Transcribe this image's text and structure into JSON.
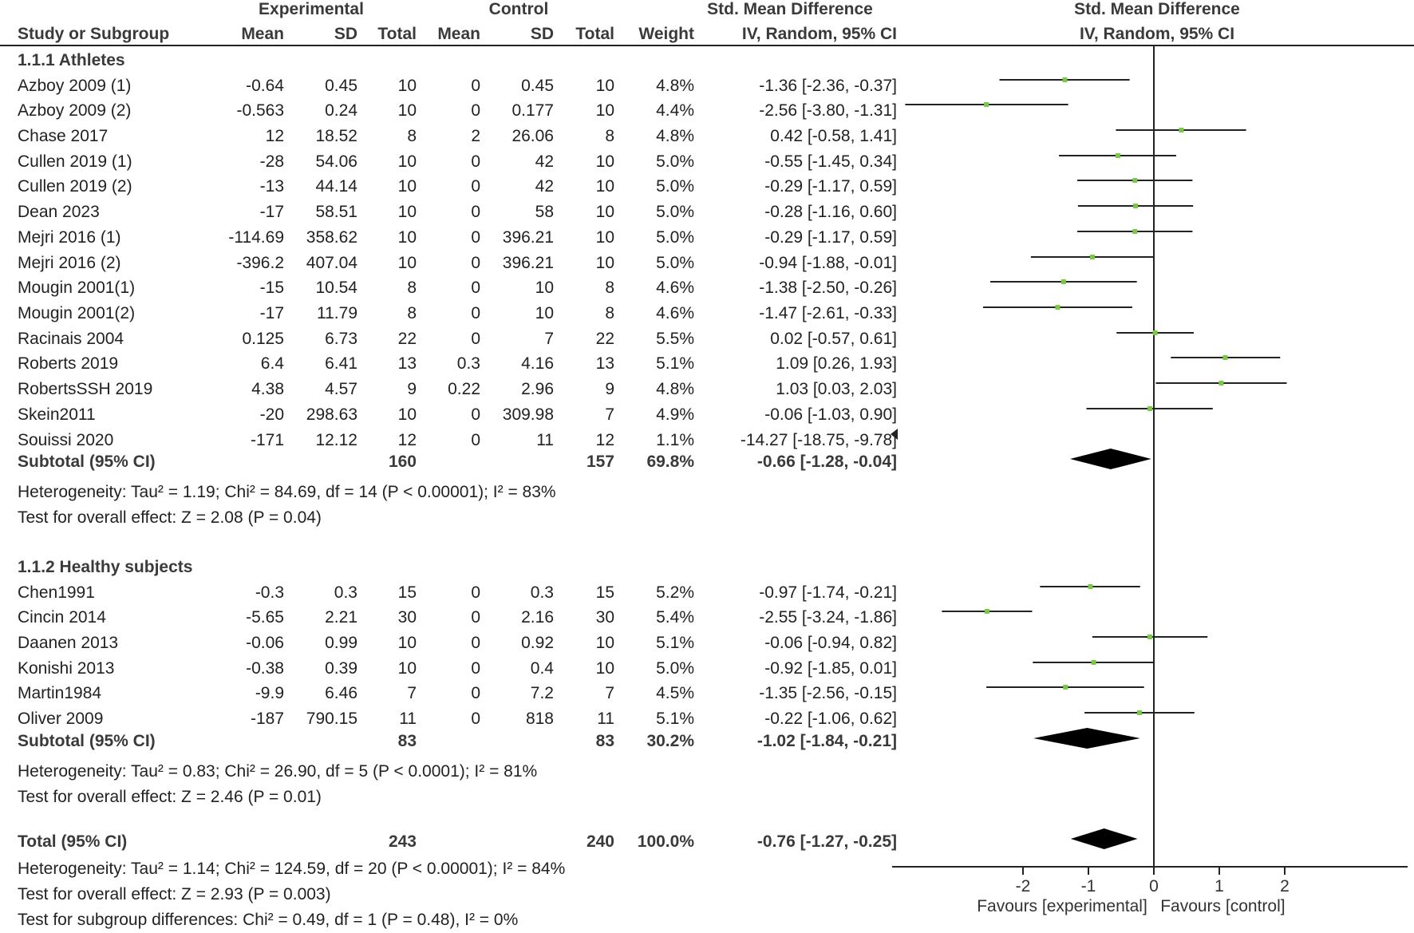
{
  "chart_data": {
    "type": "forest",
    "headers": {
      "experimental": "Experimental",
      "control": "Control",
      "smd": "Std. Mean Difference",
      "smd_plot": "Std. Mean Difference",
      "study": "Study or Subgroup",
      "mean_e": "Mean",
      "sd_e": "SD",
      "total_e": "Total",
      "mean_c": "Mean",
      "sd_c": "SD",
      "total_c": "Total",
      "weight": "Weight",
      "method": "IV, Random, 95% CI",
      "method_plot": "IV, Random, 95% CI"
    },
    "groups": [
      {
        "title": "1.1.1 Athletes",
        "studies": [
          {
            "name": "Azboy 2009 (1)",
            "mean_e": "-0.64",
            "sd_e": "0.45",
            "n_e": "10",
            "mean_c": "0",
            "sd_c": "0.45",
            "n_c": "10",
            "weight": "4.8%",
            "ci_text": "-1.36 [-2.36, -0.37]",
            "est": -1.36,
            "lo": -2.36,
            "hi": -0.37
          },
          {
            "name": "Azboy 2009 (2)",
            "mean_e": "-0.563",
            "sd_e": "0.24",
            "n_e": "10",
            "mean_c": "0",
            "sd_c": "0.177",
            "n_c": "10",
            "weight": "4.4%",
            "ci_text": "-2.56 [-3.80, -1.31]",
            "est": -2.56,
            "lo": -3.8,
            "hi": -1.31
          },
          {
            "name": "Chase 2017",
            "mean_e": "12",
            "sd_e": "18.52",
            "n_e": "8",
            "mean_c": "2",
            "sd_c": "26.06",
            "n_c": "8",
            "weight": "4.8%",
            "ci_text": "0.42 [-0.58, 1.41]",
            "est": 0.42,
            "lo": -0.58,
            "hi": 1.41
          },
          {
            "name": "Cullen 2019 (1)",
            "mean_e": "-28",
            "sd_e": "54.06",
            "n_e": "10",
            "mean_c": "0",
            "sd_c": "42",
            "n_c": "10",
            "weight": "5.0%",
            "ci_text": "-0.55 [-1.45, 0.34]",
            "est": -0.55,
            "lo": -1.45,
            "hi": 0.34
          },
          {
            "name": "Cullen 2019 (2)",
            "mean_e": "-13",
            "sd_e": "44.14",
            "n_e": "10",
            "mean_c": "0",
            "sd_c": "42",
            "n_c": "10",
            "weight": "5.0%",
            "ci_text": "-0.29 [-1.17, 0.59]",
            "est": -0.29,
            "lo": -1.17,
            "hi": 0.59
          },
          {
            "name": "Dean 2023",
            "mean_e": "-17",
            "sd_e": "58.51",
            "n_e": "10",
            "mean_c": "0",
            "sd_c": "58",
            "n_c": "10",
            "weight": "5.0%",
            "ci_text": "-0.28 [-1.16, 0.60]",
            "est": -0.28,
            "lo": -1.16,
            "hi": 0.6
          },
          {
            "name": "Mejri 2016 (1)",
            "mean_e": "-114.69",
            "sd_e": "358.62",
            "n_e": "10",
            "mean_c": "0",
            "sd_c": "396.21",
            "n_c": "10",
            "weight": "5.0%",
            "ci_text": "-0.29 [-1.17, 0.59]",
            "est": -0.29,
            "lo": -1.17,
            "hi": 0.59
          },
          {
            "name": "Mejri 2016 (2)",
            "mean_e": "-396.2",
            "sd_e": "407.04",
            "n_e": "10",
            "mean_c": "0",
            "sd_c": "396.21",
            "n_c": "10",
            "weight": "5.0%",
            "ci_text": "-0.94 [-1.88, -0.01]",
            "est": -0.94,
            "lo": -1.88,
            "hi": -0.01
          },
          {
            "name": "Mougin 2001(1)",
            "mean_e": "-15",
            "sd_e": "10.54",
            "n_e": "8",
            "mean_c": "0",
            "sd_c": "10",
            "n_c": "8",
            "weight": "4.6%",
            "ci_text": "-1.38 [-2.50, -0.26]",
            "est": -1.38,
            "lo": -2.5,
            "hi": -0.26
          },
          {
            "name": "Mougin 2001(2)",
            "mean_e": "-17",
            "sd_e": "11.79",
            "n_e": "8",
            "mean_c": "0",
            "sd_c": "10",
            "n_c": "8",
            "weight": "4.6%",
            "ci_text": "-1.47 [-2.61, -0.33]",
            "est": -1.47,
            "lo": -2.61,
            "hi": -0.33
          },
          {
            "name": "Racinais 2004",
            "mean_e": "0.125",
            "sd_e": "6.73",
            "n_e": "22",
            "mean_c": "0",
            "sd_c": "7",
            "n_c": "22",
            "weight": "5.5%",
            "ci_text": "0.02 [-0.57, 0.61]",
            "est": 0.02,
            "lo": -0.57,
            "hi": 0.61
          },
          {
            "name": "Roberts 2019",
            "mean_e": "6.4",
            "sd_e": "6.41",
            "n_e": "13",
            "mean_c": "0.3",
            "sd_c": "4.16",
            "n_c": "13",
            "weight": "5.1%",
            "ci_text": "1.09 [0.26, 1.93]",
            "est": 1.09,
            "lo": 0.26,
            "hi": 1.93
          },
          {
            "name": "RobertsSSH 2019",
            "mean_e": "4.38",
            "sd_e": "4.57",
            "n_e": "9",
            "mean_c": "0.22",
            "sd_c": "2.96",
            "n_c": "9",
            "weight": "4.8%",
            "ci_text": "1.03 [0.03, 2.03]",
            "est": 1.03,
            "lo": 0.03,
            "hi": 2.03
          },
          {
            "name": "Skein2011",
            "mean_e": "-20",
            "sd_e": "298.63",
            "n_e": "10",
            "mean_c": "0",
            "sd_c": "309.98",
            "n_c": "7",
            "weight": "4.9%",
            "ci_text": "-0.06 [-1.03, 0.90]",
            "est": -0.06,
            "lo": -1.03,
            "hi": 0.9
          },
          {
            "name": "Souissi 2020",
            "mean_e": "-171",
            "sd_e": "12.12",
            "n_e": "12",
            "mean_c": "0",
            "sd_c": "11",
            "n_c": "12",
            "weight": "1.1%",
            "ci_text": "-14.27 [-18.75, -9.78]",
            "est": -14.27,
            "lo": -18.75,
            "hi": -9.78
          }
        ],
        "subtotal": {
          "label": "Subtotal (95% CI)",
          "n_e": "160",
          "n_c": "157",
          "weight": "69.8%",
          "ci_text": "-0.66 [-1.28, -0.04]",
          "est": -0.66,
          "lo": -1.28,
          "hi": -0.04
        },
        "heterogeneity": "Heterogeneity: Tau² = 1.19; Chi² = 84.69, df = 14 (P < 0.00001); I² = 83%",
        "overall": "Test for overall effect: Z = 2.08 (P = 0.04)"
      },
      {
        "title": "1.1.2 Healthy subjects",
        "studies": [
          {
            "name": "Chen1991",
            "mean_e": "-0.3",
            "sd_e": "0.3",
            "n_e": "15",
            "mean_c": "0",
            "sd_c": "0.3",
            "n_c": "15",
            "weight": "5.2%",
            "ci_text": "-0.97 [-1.74, -0.21]",
            "est": -0.97,
            "lo": -1.74,
            "hi": -0.21
          },
          {
            "name": "Cincin 2014",
            "mean_e": "-5.65",
            "sd_e": "2.21",
            "n_e": "30",
            "mean_c": "0",
            "sd_c": "2.16",
            "n_c": "30",
            "weight": "5.4%",
            "ci_text": "-2.55 [-3.24, -1.86]",
            "est": -2.55,
            "lo": -3.24,
            "hi": -1.86
          },
          {
            "name": "Daanen 2013",
            "mean_e": "-0.06",
            "sd_e": "0.99",
            "n_e": "10",
            "mean_c": "0",
            "sd_c": "0.92",
            "n_c": "10",
            "weight": "5.1%",
            "ci_text": "-0.06 [-0.94, 0.82]",
            "est": -0.06,
            "lo": -0.94,
            "hi": 0.82
          },
          {
            "name": "Konishi 2013",
            "mean_e": "-0.38",
            "sd_e": "0.39",
            "n_e": "10",
            "mean_c": "0",
            "sd_c": "0.4",
            "n_c": "10",
            "weight": "5.0%",
            "ci_text": "-0.92 [-1.85, 0.01]",
            "est": -0.92,
            "lo": -1.85,
            "hi": 0.01
          },
          {
            "name": "Martin1984",
            "mean_e": "-9.9",
            "sd_e": "6.46",
            "n_e": "7",
            "mean_c": "0",
            "sd_c": "7.2",
            "n_c": "7",
            "weight": "4.5%",
            "ci_text": "-1.35 [-2.56, -0.15]",
            "est": -1.35,
            "lo": -2.56,
            "hi": -0.15
          },
          {
            "name": "Oliver 2009",
            "mean_e": "-187",
            "sd_e": "790.15",
            "n_e": "11",
            "mean_c": "0",
            "sd_c": "818",
            "n_c": "11",
            "weight": "5.1%",
            "ci_text": "-0.22 [-1.06, 0.62]",
            "est": -0.22,
            "lo": -1.06,
            "hi": 0.62
          }
        ],
        "subtotal": {
          "label": "Subtotal (95% CI)",
          "n_e": "83",
          "n_c": "83",
          "weight": "30.2%",
          "ci_text": "-1.02 [-1.84, -0.21]",
          "est": -1.02,
          "lo": -1.84,
          "hi": -0.21
        },
        "heterogeneity": "Heterogeneity: Tau² = 0.83; Chi² = 26.90, df = 5 (P < 0.0001); I² = 81%",
        "overall": "Test for overall effect: Z = 2.46 (P = 0.01)"
      }
    ],
    "total": {
      "label": "Total (95% CI)",
      "n_e": "243",
      "n_c": "240",
      "weight": "100.0%",
      "ci_text": "-0.76 [-1.27, -0.25]",
      "est": -0.76,
      "lo": -1.27,
      "hi": -0.25
    },
    "total_heterogeneity": "Heterogeneity: Tau² = 1.14; Chi² = 124.59, df = 20 (P < 0.00001); I² = 84%",
    "total_overall": "Test for overall effect: Z = 2.93 (P = 0.003)",
    "subgroup_test": "Test for subgroup differences: Chi² = 0.49, df = 1 (P = 0.48), I² = 0%",
    "xlim": [
      -4,
      4
    ],
    "xticks": [
      -2,
      -1,
      0,
      1,
      2
    ],
    "xlabel_left": "Favours [experimental]",
    "xlabel_right": "Favours [control]",
    "point_color": "#7ac943",
    "line_color": "#222222"
  }
}
